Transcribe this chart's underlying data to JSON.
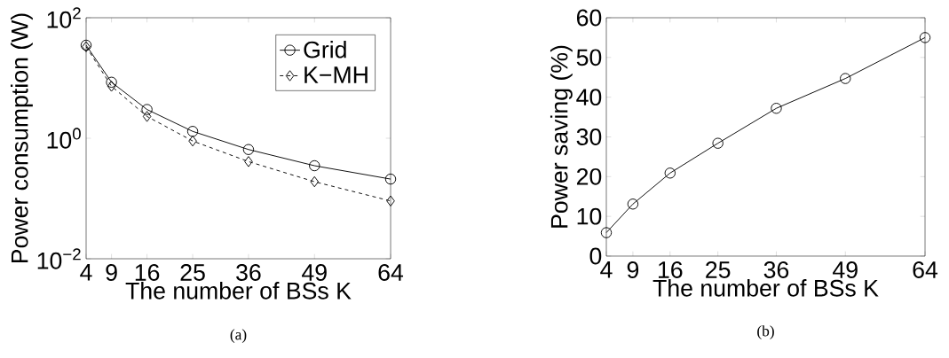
{
  "chart_data": [
    {
      "type": "line",
      "xlabel": "The number of BSs K",
      "ylabel": "Power consumption (W)",
      "x": [
        4,
        9,
        16,
        25,
        36,
        49,
        64
      ],
      "series": [
        {
          "name": "Grid",
          "color": "#000000",
          "marker": "circle",
          "line_style": "solid",
          "values": [
            35,
            8.5,
            3.0,
            1.3,
            0.65,
            0.35,
            0.21
          ]
        },
        {
          "name": "K−MH",
          "color": "#000000",
          "marker": "diamond",
          "line_style": "dashed",
          "values": [
            33,
            7.3,
            2.3,
            0.9,
            0.41,
            0.19,
            0.091
          ]
        }
      ],
      "log": "y",
      "xlim": [
        4,
        64
      ],
      "ylim": [
        0.01,
        100
      ],
      "xticks": [
        4,
        9,
        16,
        25,
        36,
        49,
        64
      ],
      "yticks": [
        {
          "value": 0.01,
          "label": "10$^{−2}$"
        },
        {
          "value": 1,
          "label": "10$^{0}$"
        },
        {
          "value": 100,
          "label": "10$^{2}$"
        }
      ],
      "legend": "top right",
      "grid": false,
      "annotations": [
        "(a)"
      ]
    },
    {
      "type": "line",
      "xlabel": "The number of BSs K",
      "ylabel": "Power saving (%)",
      "x": [
        4,
        9,
        16,
        25,
        36,
        49,
        64
      ],
      "series": [
        {
          "color": "#000000",
          "marker": "circle",
          "line_style": "solid",
          "values": [
            5.9,
            13.1,
            20.9,
            28.4,
            37.2,
            44.7,
            55.0
          ]
        }
      ],
      "xlim": [
        4,
        64
      ],
      "ylim": [
        0,
        60
      ],
      "xticks": [
        4,
        9,
        16,
        25,
        36,
        49,
        64
      ],
      "yticks": [
        0,
        10,
        20,
        30,
        40,
        50,
        60
      ],
      "grid": false,
      "annotations": [
        "(b)"
      ]
    }
  ]
}
